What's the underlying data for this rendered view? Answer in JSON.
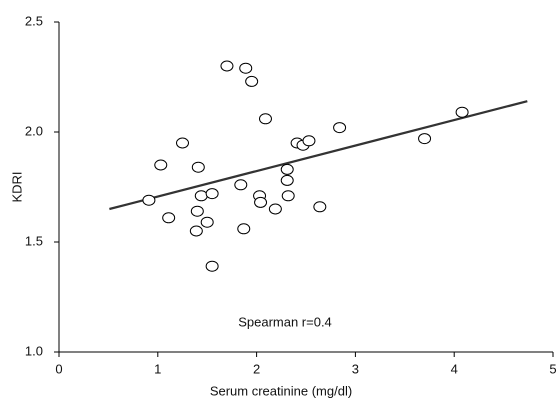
{
  "chart_data": {
    "type": "scatter",
    "x_label": "Serum creatinine (mg/dl)",
    "y_label": "KDRI",
    "annotation": "Spearman r=0.4",
    "xlim": [
      0,
      5
    ],
    "xticks": [
      0,
      1,
      2,
      3,
      4,
      5
    ],
    "ylim": [
      1.0,
      2.5
    ],
    "yticks": [
      {
        "value": 1.0,
        "label": "1.0"
      },
      {
        "value": 1.5,
        "label": "1.5"
      },
      {
        "value": 2.0,
        "label": "2.0"
      },
      {
        "value": 2.5,
        "label": "2.5"
      }
    ],
    "x": [
      0.91,
      1.03,
      1.11,
      1.25,
      1.41,
      1.4,
      1.44,
      1.39,
      1.5,
      1.55,
      1.55,
      1.7,
      1.89,
      1.95,
      1.84,
      1.87,
      2.03,
      2.04,
      2.09,
      2.19,
      2.31,
      2.31,
      2.32,
      2.41,
      2.47,
      2.53,
      2.64,
      2.84,
      3.7,
      4.08
    ],
    "y": [
      1.69,
      1.85,
      1.61,
      1.95,
      1.84,
      1.64,
      1.71,
      1.55,
      1.59,
      1.72,
      1.39,
      2.3,
      2.29,
      2.23,
      1.76,
      1.56,
      1.71,
      1.68,
      2.06,
      1.65,
      1.83,
      1.78,
      1.71,
      1.95,
      1.94,
      1.96,
      1.66,
      2.02,
      1.97,
      2.09
    ],
    "fit_line": {
      "x": [
        0.51,
        4.74
      ],
      "y": [
        1.65,
        2.14
      ]
    },
    "marker_color": "#000000",
    "line_color": "#333333"
  }
}
